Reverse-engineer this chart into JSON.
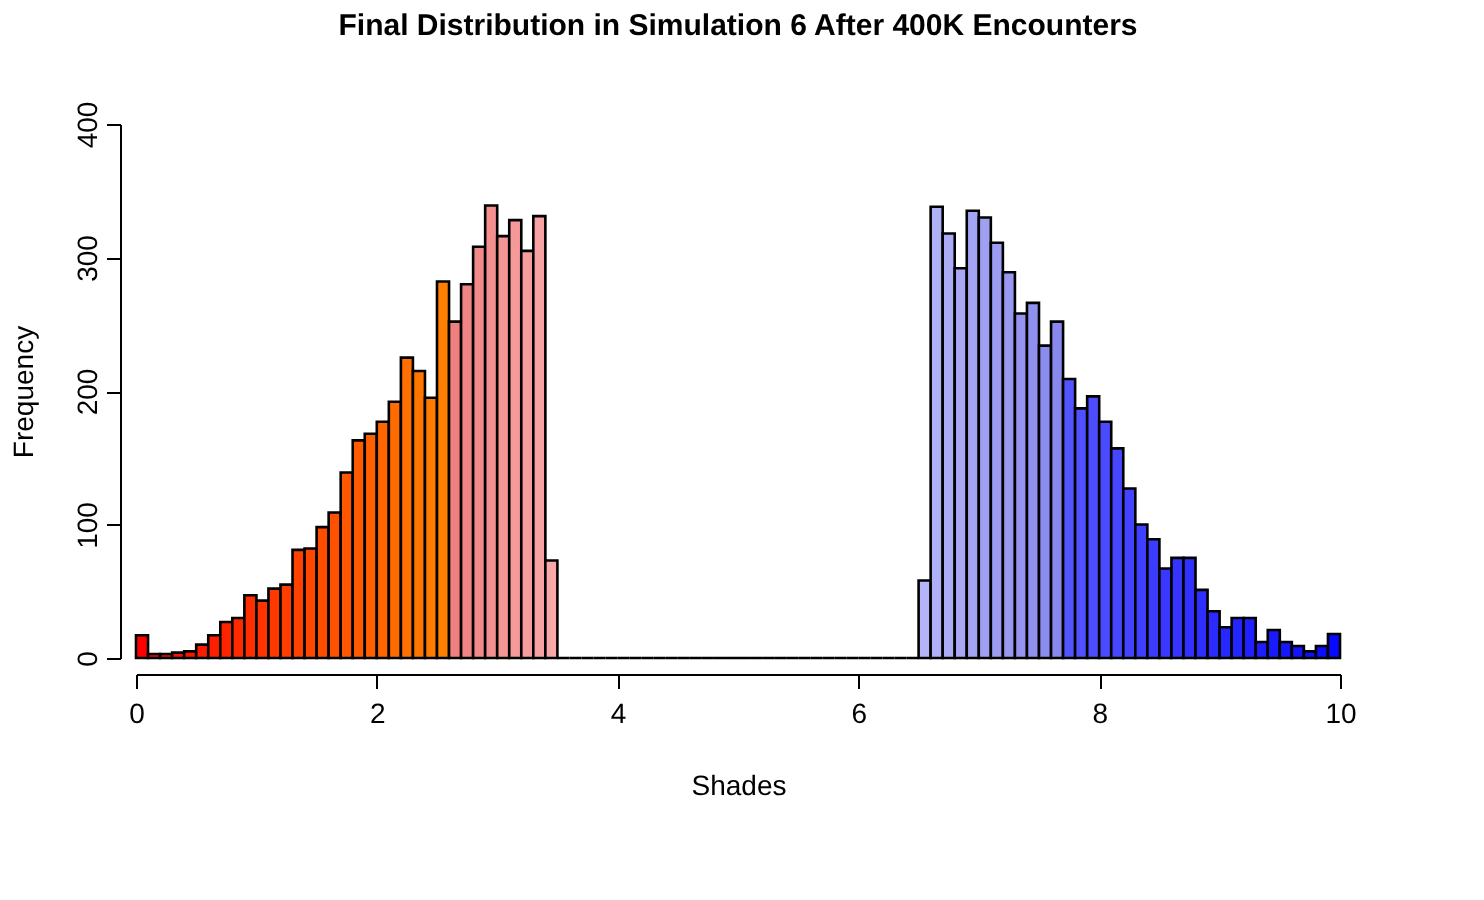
{
  "chart_data": {
    "type": "histogram",
    "title": "Final Distribution in Simulation 6 After 400K Encounters",
    "xlabel": "Shades",
    "ylabel": "Frequency",
    "bins": [
      0,
      0.1,
      0.2,
      0.3,
      0.4,
      0.5,
      0.6,
      0.7,
      0.8,
      0.9,
      1,
      1.1,
      1.2,
      1.3,
      1.4,
      1.5,
      1.6,
      1.7,
      1.8,
      1.9,
      2,
      2.1,
      2.2,
      2.3,
      2.4,
      2.5,
      2.6,
      2.7,
      2.8,
      2.9,
      3,
      3.1,
      3.2,
      3.3,
      3.4,
      3.5,
      3.6,
      3.7,
      3.8,
      3.9,
      4,
      4.1,
      4.2,
      4.3,
      4.4,
      4.5,
      4.6,
      4.7,
      4.8,
      4.9,
      5,
      5.1,
      5.2,
      5.3,
      5.4,
      5.5,
      5.6,
      5.7,
      5.8,
      5.9,
      6,
      6.1,
      6.2,
      6.3,
      6.4,
      6.5,
      6.6,
      6.7,
      6.8,
      6.9,
      7,
      7.1,
      7.2,
      7.3,
      7.4,
      7.5,
      7.6,
      7.7,
      7.8,
      7.9,
      8,
      8.1,
      8.2,
      8.3,
      8.4,
      8.5,
      8.6,
      8.7,
      8.8,
      8.9,
      9,
      9.1,
      9.2,
      9.3,
      9.4,
      9.5,
      9.6,
      9.7,
      9.8,
      9.9,
      10
    ],
    "values": [
      17,
      3,
      3,
      4,
      5,
      10,
      17,
      27,
      30,
      47,
      43,
      52,
      55,
      81,
      82,
      98,
      109,
      139,
      163,
      168,
      177,
      192,
      225,
      215,
      195,
      282,
      252,
      280,
      308,
      339,
      316,
      328,
      305,
      331,
      73,
      0,
      0,
      0,
      0,
      0,
      0,
      0,
      0,
      0,
      0,
      0,
      0,
      0,
      0,
      0,
      0,
      0,
      0,
      0,
      0,
      0,
      0,
      0,
      0,
      0,
      0,
      0,
      0,
      0,
      0,
      58,
      338,
      318,
      292,
      335,
      330,
      311,
      289,
      258,
      266,
      234,
      252,
      209,
      187,
      196,
      177,
      157,
      127,
      100,
      89,
      67,
      75,
      75,
      51,
      35,
      23,
      30,
      30,
      12,
      21,
      12,
      9,
      5,
      9,
      18
    ],
    "colors": [
      "#ff0000",
      "#ff0500",
      "#ff0a00",
      "#ff0f00",
      "#ff1400",
      "#ff1a00",
      "#ff1f00",
      "#ff2400",
      "#ff2900",
      "#ff2e00",
      "#ff3300",
      "#ff3800",
      "#ff3d00",
      "#ff4200",
      "#ff4700",
      "#ff4d00",
      "#ff5200",
      "#ff5700",
      "#ff5c00",
      "#ff6100",
      "#ff6600",
      "#ff6b00",
      "#ff7000",
      "#ff7500",
      "#ff7a00",
      "#ff8000",
      "#f08080",
      "#f18585",
      "#f28a8a",
      "#f38f8f",
      "#f49494",
      "#f59999",
      "#f69e9e",
      "#f7a3a3",
      "#f8a8a8",
      "#000000",
      "#000000",
      "#000000",
      "#000000",
      "#000000",
      "#000000",
      "#000000",
      "#000000",
      "#000000",
      "#000000",
      "#000000",
      "#000000",
      "#000000",
      "#000000",
      "#000000",
      "#000000",
      "#000000",
      "#000000",
      "#000000",
      "#000000",
      "#000000",
      "#000000",
      "#000000",
      "#000000",
      "#000000",
      "#000000",
      "#000000",
      "#000000",
      "#000000",
      "#000000",
      "#b4b4f8",
      "#b0b0f7",
      "#acacf6",
      "#a8a8f5",
      "#a4a4f4",
      "#a0a0f3",
      "#9c9cf2",
      "#9898f1",
      "#9494f0",
      "#9090ef",
      "#8c8cee",
      "#8888ed",
      "#5454ff",
      "#5050ff",
      "#4d4dff",
      "#4a4aff",
      "#4646ff",
      "#4343ff",
      "#3f3fff",
      "#3c3cff",
      "#3838ff",
      "#3535ff",
      "#3232ff",
      "#2e2eff",
      "#2b2bff",
      "#2727ff",
      "#2424ff",
      "#2121ff",
      "#1d1dff",
      "#1a1aff",
      "#1616ff",
      "#1313ff",
      "#1010ff",
      "#0c0cff",
      "#0909ff"
    ],
    "xlim": [
      0,
      10
    ],
    "xticks": [
      0,
      2,
      4,
      6,
      8,
      10
    ],
    "ylim": [
      0,
      400
    ],
    "yticks": [
      0,
      100,
      200,
      300,
      400
    ],
    "grid": false,
    "legend": false
  }
}
